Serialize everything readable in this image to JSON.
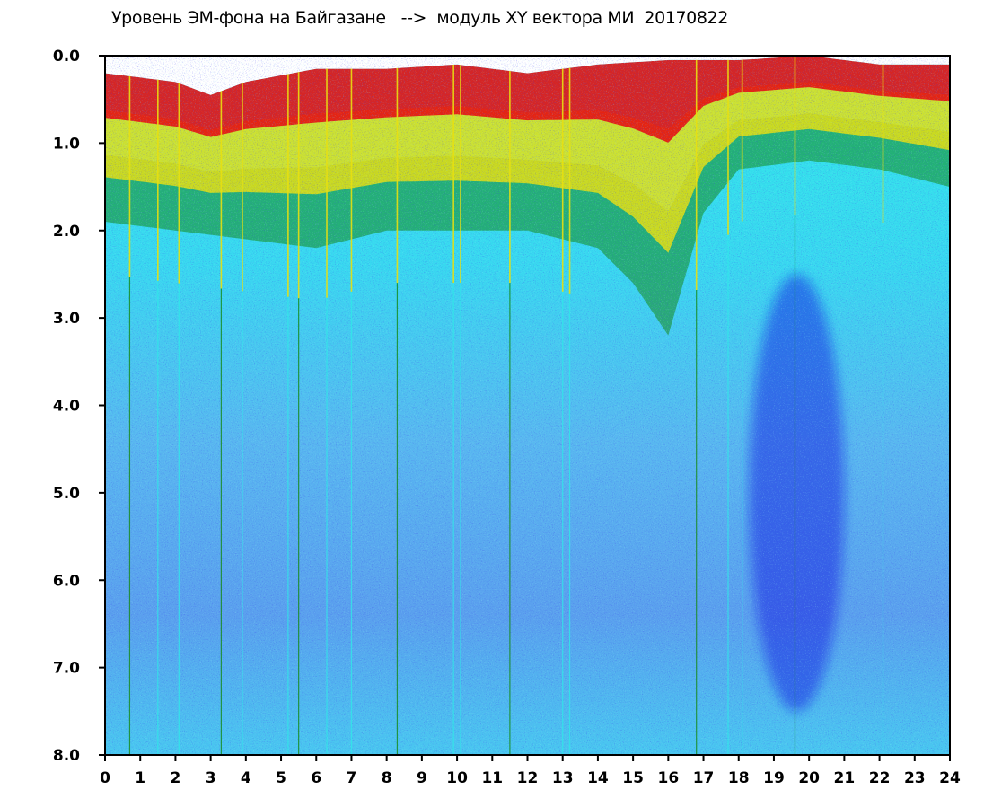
{
  "chart_data": {
    "type": "heatmap",
    "title": "Уровень ЭМ-фона на Байгазане   -->  модуль XY вектора МИ  20170822",
    "xlabel": "",
    "ylabel": "",
    "xlim": [
      0,
      24
    ],
    "ylim": [
      0,
      8
    ],
    "y_inverted": true,
    "grid": false,
    "x_ticks": [
      "0",
      "1",
      "2",
      "3",
      "4",
      "5",
      "6",
      "7",
      "8",
      "9",
      "10",
      "11",
      "12",
      "13",
      "14",
      "15",
      "16",
      "17",
      "18",
      "19",
      "20",
      "21",
      "22",
      "23",
      "24"
    ],
    "y_ticks": [
      "0.0",
      "1.0",
      "2.0",
      "3.0",
      "4.0",
      "5.0",
      "6.0",
      "7.0",
      "8.0"
    ],
    "colorscale": [
      "#1010e0",
      "#5a6af0",
      "#38d8f0",
      "#30e8e8",
      "#168a16",
      "#e8e010",
      "#e81010"
    ],
    "background_color": "#ffffff",
    "upper_boundary_by_hour": [
      {
        "x": 0,
        "y": 0.2
      },
      {
        "x": 2,
        "y": 0.3
      },
      {
        "x": 3,
        "y": 0.45
      },
      {
        "x": 4,
        "y": 0.3
      },
      {
        "x": 6,
        "y": 0.15
      },
      {
        "x": 8,
        "y": 0.15
      },
      {
        "x": 10,
        "y": 0.1
      },
      {
        "x": 12,
        "y": 0.2
      },
      {
        "x": 14,
        "y": 0.1
      },
      {
        "x": 16,
        "y": 0.05
      },
      {
        "x": 18,
        "y": 0.05
      },
      {
        "x": 20,
        "y": 0.0
      },
      {
        "x": 22,
        "y": 0.1
      },
      {
        "x": 24,
        "y": 0.1
      }
    ],
    "warm_band_lower_edge_by_hour": [
      {
        "x": 0,
        "y": 1.9
      },
      {
        "x": 2,
        "y": 2.0
      },
      {
        "x": 4,
        "y": 2.1
      },
      {
        "x": 6,
        "y": 2.2
      },
      {
        "x": 8,
        "y": 2.0
      },
      {
        "x": 10,
        "y": 2.0
      },
      {
        "x": 12,
        "y": 2.0
      },
      {
        "x": 14,
        "y": 2.2
      },
      {
        "x": 15,
        "y": 2.6
      },
      {
        "x": 16,
        "y": 3.2
      },
      {
        "x": 17,
        "y": 1.8
      },
      {
        "x": 18,
        "y": 1.3
      },
      {
        "x": 20,
        "y": 1.2
      },
      {
        "x": 22,
        "y": 1.3
      },
      {
        "x": 24,
        "y": 1.5
      }
    ],
    "vertical_streaks_hours": [
      0.7,
      1.5,
      2.1,
      3.3,
      3.9,
      5.2,
      5.5,
      6.3,
      7.0,
      8.3,
      9.9,
      10.1,
      11.5,
      13.0,
      13.2,
      16.8,
      17.7,
      18.1,
      19.6,
      22.1
    ],
    "low_level_region": {
      "x": [
        18.3,
        21.0
      ],
      "y": [
        2.5,
        7.5
      ]
    }
  }
}
